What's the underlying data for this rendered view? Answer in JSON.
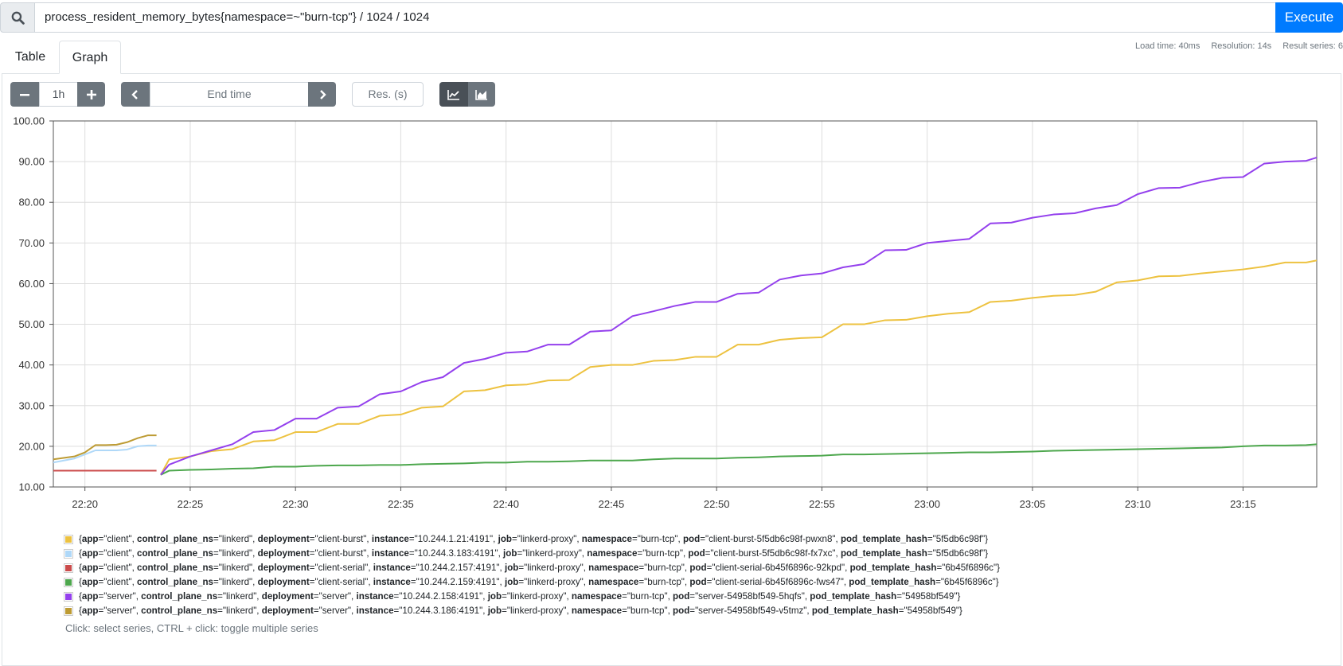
{
  "query": "process_resident_memory_bytes{namespace=~\"burn-tcp\"} / 1024 / 1024",
  "execute": "Execute",
  "stats": [
    "Load time: 40ms",
    "Resolution: 14s",
    "Result series: 6"
  ],
  "tabs": [
    "Table",
    "Graph"
  ],
  "controls": {
    "range": "1h",
    "end_time": "End time",
    "resolution": "Res. (s)"
  },
  "hint": "Click: select series, CTRL + click: toggle multiple series",
  "chart_data": {
    "type": "line",
    "grid": true,
    "ylim": [
      10,
      100
    ],
    "yticks": [
      {
        "value": 10,
        "label": "10.00"
      },
      {
        "value": 20,
        "label": "20.00"
      },
      {
        "value": 30,
        "label": "30.00"
      },
      {
        "value": 40,
        "label": "40.00"
      },
      {
        "value": 50,
        "label": "50.00"
      },
      {
        "value": 60,
        "label": "60.00"
      },
      {
        "value": 70,
        "label": "70.00"
      },
      {
        "value": 80,
        "label": "80.00"
      },
      {
        "value": 90,
        "label": "90.00"
      },
      {
        "value": 100,
        "label": "100.00"
      }
    ],
    "xlim": [
      1338.5,
      1398.5
    ],
    "xticks": [
      {
        "value": 1340,
        "label": "22:20"
      },
      {
        "value": 1345,
        "label": "22:25"
      },
      {
        "value": 1350,
        "label": "22:30"
      },
      {
        "value": 1355,
        "label": "22:35"
      },
      {
        "value": 1360,
        "label": "22:40"
      },
      {
        "value": 1365,
        "label": "22:45"
      },
      {
        "value": 1370,
        "label": "22:50"
      },
      {
        "value": 1375,
        "label": "22:55"
      },
      {
        "value": 1380,
        "label": "23:00"
      },
      {
        "value": 1385,
        "label": "23:05"
      },
      {
        "value": 1390,
        "label": "23:10"
      },
      {
        "value": 1395,
        "label": "23:15"
      }
    ],
    "series": [
      {
        "name": "{app=\"client\", control_plane_ns=\"linkerd\", deployment=\"client-burst\", instance=\"10.244.1.21:4191\", job=\"linkerd-proxy\", namespace=\"burn-tcp\", pod=\"client-burst-5f5db6c98f-pwxn8\", pod_template_hash=\"5f5db6c98f\"}",
        "color": "#edc240",
        "x": [
          1343.6,
          1344,
          1345,
          1346,
          1347,
          1348,
          1349,
          1350,
          1351,
          1352,
          1353,
          1354,
          1355,
          1356,
          1357,
          1358,
          1359,
          1360,
          1361,
          1362,
          1363,
          1364,
          1365,
          1366,
          1367,
          1368,
          1369,
          1370,
          1371,
          1372,
          1373,
          1374,
          1375,
          1376,
          1377,
          1378,
          1379,
          1380,
          1381,
          1382,
          1383,
          1384,
          1385,
          1386,
          1387,
          1388,
          1389,
          1390,
          1391,
          1392,
          1393,
          1394,
          1395,
          1396,
          1397,
          1398,
          1398.5
        ],
        "values": [
          13,
          16.8,
          17.5,
          18.8,
          19.3,
          21.2,
          21.5,
          23.5,
          23.5,
          25.5,
          25.5,
          27.5,
          27.8,
          29.5,
          29.8,
          33.5,
          33.8,
          35,
          35.2,
          36.2,
          36.3,
          39.5,
          40,
          40,
          41,
          41.2,
          42,
          42,
          45,
          45,
          46.2,
          46.6,
          46.8,
          50,
          50,
          51,
          51.1,
          52,
          52.6,
          53,
          55.5,
          55.8,
          56.5,
          57,
          57.2,
          58,
          60.3,
          60.8,
          61.8,
          61.9,
          62.5,
          63,
          63.5,
          64.2,
          65.2,
          65.2,
          65.7
        ]
      },
      {
        "name": "{app=\"client\", control_plane_ns=\"linkerd\", deployment=\"client-burst\", instance=\"10.244.3.183:4191\", job=\"linkerd-proxy\", namespace=\"burn-tcp\", pod=\"client-burst-5f5db6c98f-fx7xc\", pod_template_hash=\"5f5db6c98f\"}",
        "color": "#afd8f8",
        "x": [
          1338.5,
          1339.5,
          1340,
          1340.5,
          1341,
          1341.5,
          1342,
          1342.5,
          1343,
          1343.4
        ],
        "values": [
          16,
          17,
          18,
          19,
          19,
          19,
          19.2,
          20,
          20.2,
          20.2
        ]
      },
      {
        "name": "{app=\"client\", control_plane_ns=\"linkerd\", deployment=\"client-serial\", instance=\"10.244.2.157:4191\", job=\"linkerd-proxy\", namespace=\"burn-tcp\", pod=\"client-serial-6b45f6896c-92kpd\", pod_template_hash=\"6b45f6896c\"}",
        "color": "#cb4b4b",
        "x": [
          1338.5,
          1339.5,
          1340,
          1340.5,
          1341,
          1341.5,
          1342,
          1342.5,
          1343,
          1343.4
        ],
        "values": [
          14,
          14,
          14,
          14,
          14,
          14,
          14,
          14,
          14,
          14
        ]
      },
      {
        "name": "{app=\"client\", control_plane_ns=\"linkerd\", deployment=\"client-serial\", instance=\"10.244.2.159:4191\", job=\"linkerd-proxy\", namespace=\"burn-tcp\", pod=\"client-serial-6b45f6896c-fws47\", pod_template_hash=\"6b45f6896c\"}",
        "color": "#4da74d",
        "x": [
          1343.6,
          1344,
          1345,
          1346,
          1347,
          1348,
          1349,
          1350,
          1351,
          1352,
          1353,
          1354,
          1355,
          1356,
          1357,
          1358,
          1359,
          1360,
          1361,
          1362,
          1363,
          1364,
          1365,
          1366,
          1367,
          1368,
          1369,
          1370,
          1371,
          1372,
          1373,
          1374,
          1375,
          1376,
          1377,
          1378,
          1379,
          1380,
          1381,
          1382,
          1383,
          1384,
          1385,
          1386,
          1387,
          1388,
          1389,
          1390,
          1391,
          1392,
          1393,
          1394,
          1395,
          1396,
          1397,
          1398,
          1398.5
        ],
        "values": [
          13,
          14,
          14.2,
          14.3,
          14.5,
          14.6,
          15,
          15,
          15.2,
          15.3,
          15.3,
          15.4,
          15.4,
          15.6,
          15.7,
          15.8,
          16,
          16,
          16.2,
          16.2,
          16.3,
          16.5,
          16.5,
          16.5,
          16.8,
          17,
          17,
          17,
          17.2,
          17.3,
          17.5,
          17.6,
          17.7,
          18,
          18,
          18.1,
          18.2,
          18.3,
          18.4,
          18.5,
          18.5,
          18.6,
          18.7,
          18.9,
          19,
          19.1,
          19.2,
          19.3,
          19.4,
          19.5,
          19.6,
          19.7,
          20,
          20.2,
          20.2,
          20.3,
          20.5
        ]
      },
      {
        "name": "{app=\"server\", control_plane_ns=\"linkerd\", deployment=\"server\", instance=\"10.244.2.158:4191\", job=\"linkerd-proxy\", namespace=\"burn-tcp\", pod=\"server-54958bf549-5hqfs\", pod_template_hash=\"54958bf549\"}",
        "color": "#9440ed",
        "x": [
          1343.6,
          1344,
          1345,
          1346,
          1347,
          1348,
          1349,
          1350,
          1351,
          1352,
          1353,
          1354,
          1355,
          1356,
          1357,
          1358,
          1359,
          1360,
          1361,
          1362,
          1363,
          1364,
          1365,
          1366,
          1367,
          1368,
          1369,
          1370,
          1371,
          1372,
          1373,
          1374,
          1375,
          1376,
          1377,
          1378,
          1379,
          1380,
          1381,
          1382,
          1383,
          1384,
          1385,
          1386,
          1387,
          1388,
          1389,
          1390,
          1391,
          1392,
          1393,
          1394,
          1395,
          1396,
          1397,
          1398,
          1398.5
        ],
        "values": [
          13,
          15.5,
          17.5,
          19,
          20.5,
          23.5,
          24,
          26.8,
          26.8,
          29.5,
          29.8,
          32.8,
          33.5,
          35.8,
          37,
          40.5,
          41.5,
          43,
          43.3,
          45,
          45,
          48.2,
          48.5,
          52,
          53.2,
          54.5,
          55.5,
          55.5,
          57.5,
          57.8,
          61,
          62,
          62.5,
          64,
          64.8,
          68.2,
          68.3,
          70,
          70.5,
          71,
          74.8,
          75,
          76.2,
          77,
          77.3,
          78.5,
          79.3,
          82,
          83.5,
          83.6,
          85,
          86,
          86.2,
          89.5,
          90,
          90.2,
          91
        ]
      },
      {
        "name": "{app=\"server\", control_plane_ns=\"linkerd\", deployment=\"server\", instance=\"10.244.3.186:4191\", job=\"linkerd-proxy\", namespace=\"burn-tcp\", pod=\"server-54958bf549-v5tmz\", pod_template_hash=\"54958bf549\"}",
        "color": "#bd9b33",
        "x": [
          1338.5,
          1339.5,
          1340,
          1340.5,
          1341,
          1341.5,
          1342,
          1342.5,
          1343,
          1343.4
        ],
        "values": [
          16.8,
          17.5,
          18.5,
          20.3,
          20.3,
          20.4,
          21,
          22,
          22.7,
          22.7
        ]
      }
    ]
  }
}
